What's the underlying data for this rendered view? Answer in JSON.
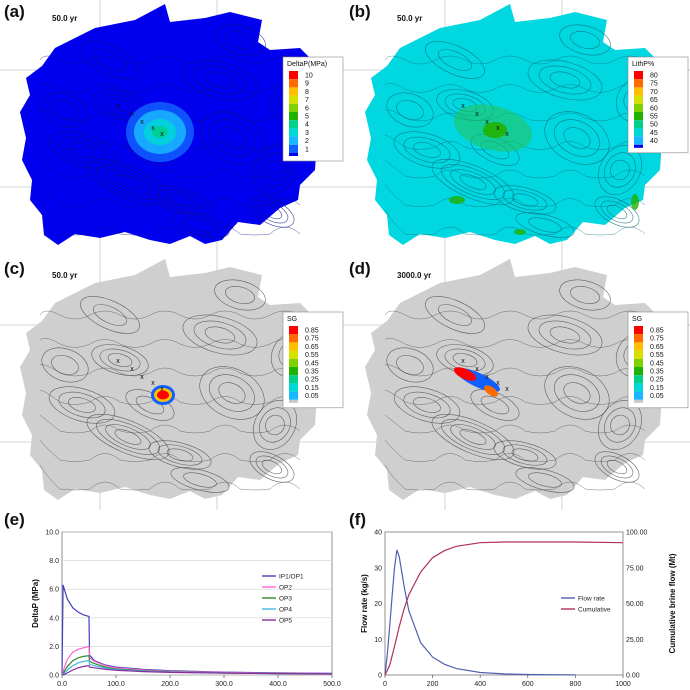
{
  "chart_data": [
    {
      "panel": "(a)",
      "type": "heatmap",
      "time_label": "50.0 yr",
      "legend_title": "DeltaP(MPa)",
      "legend_ticks": [
        "10",
        "9",
        "8",
        "7",
        "6",
        "5",
        "4",
        "3",
        "2",
        "1"
      ],
      "colors": [
        "#ff0000",
        "#ff6a00",
        "#ffbf00",
        "#d8e000",
        "#7fd200",
        "#21b100",
        "#00d08a",
        "#00d7d7",
        "#19b7ff",
        "#1060ff",
        "#0000ee"
      ]
    },
    {
      "panel": "(b)",
      "type": "heatmap",
      "time_label": "50.0 yr",
      "legend_title": "LithP%",
      "legend_ticks": [
        "80",
        "75",
        "70",
        "65",
        "60",
        "55",
        "50",
        "45",
        "40"
      ],
      "colors": [
        "#ff0000",
        "#ff6a00",
        "#ffbf00",
        "#d8e000",
        "#7fd200",
        "#21b100",
        "#00d08a",
        "#00d7d7",
        "#19b7ff",
        "#0000ee"
      ]
    },
    {
      "panel": "(c)",
      "type": "heatmap",
      "time_label": "50.0 yr",
      "legend_title": "SG",
      "legend_ticks": [
        "0.85",
        "0.75",
        "0.65",
        "0.55",
        "0.45",
        "0.35",
        "0.25",
        "0.15",
        "0.05"
      ],
      "colors": [
        "#ff0000",
        "#ff6a00",
        "#ffbf00",
        "#d8e000",
        "#7fd200",
        "#21b100",
        "#00d08a",
        "#00d7d7",
        "#19b7ff",
        "#1060ff",
        "#c8c8c8"
      ]
    },
    {
      "panel": "(d)",
      "type": "heatmap",
      "time_label": "3000.0 yr",
      "legend_title": "SG",
      "legend_ticks": [
        "0.85",
        "0.75",
        "0.65",
        "0.55",
        "0.45",
        "0.35",
        "0.25",
        "0.15",
        "0.05"
      ],
      "colors": [
        "#ff0000",
        "#ff6a00",
        "#ffbf00",
        "#d8e000",
        "#7fd200",
        "#21b100",
        "#00d08a",
        "#00d7d7",
        "#19b7ff",
        "#1060ff",
        "#c8c8c8"
      ]
    },
    {
      "panel": "(e)",
      "type": "line",
      "ylabel": "DeltaP (MPa)",
      "xlabel": "Years",
      "xlim": [
        0,
        500
      ],
      "ylim": [
        0,
        10
      ],
      "xticks": [
        0,
        100,
        200,
        300,
        400,
        500
      ],
      "xtick_labels": [
        "0.0",
        "100.0",
        "200.0",
        "300.0",
        "400.0",
        "500.0"
      ],
      "yticks": [
        0,
        2,
        4,
        6,
        8,
        10
      ],
      "ytick_labels": [
        "0.0",
        "2.0",
        "4.0",
        "6.0",
        "8.0",
        "10.0"
      ],
      "series": [
        {
          "name": "IP1/OP1",
          "color": "#4040c0",
          "x": [
            0,
            2,
            5,
            10,
            20,
            30,
            40,
            50,
            51,
            60,
            80,
            100,
            150,
            200,
            300,
            400,
            500
          ],
          "y": [
            0,
            6.3,
            5.9,
            5.3,
            4.7,
            4.4,
            4.2,
            4.1,
            1.4,
            1.0,
            0.7,
            0.55,
            0.4,
            0.3,
            0.2,
            0.15,
            0.12
          ]
        },
        {
          "name": "OP2",
          "color": "#ff66cc",
          "x": [
            0,
            5,
            10,
            20,
            30,
            40,
            50,
            51,
            60,
            80,
            100,
            150,
            200,
            300,
            400,
            500
          ],
          "y": [
            0,
            0.6,
            1.1,
            1.6,
            1.8,
            1.9,
            2.0,
            1.2,
            0.95,
            0.65,
            0.5,
            0.35,
            0.25,
            0.18,
            0.13,
            0.1
          ]
        },
        {
          "name": "OP3",
          "color": "#2e8b2e",
          "x": [
            0,
            5,
            10,
            20,
            30,
            40,
            50,
            51,
            60,
            80,
            100,
            150,
            200,
            300,
            400,
            500
          ],
          "y": [
            0,
            0.3,
            0.6,
            1.0,
            1.2,
            1.3,
            1.35,
            0.95,
            0.8,
            0.55,
            0.42,
            0.3,
            0.22,
            0.15,
            0.11,
            0.09
          ]
        },
        {
          "name": "OP4",
          "color": "#40b8e0",
          "x": [
            0,
            5,
            10,
            20,
            30,
            40,
            50,
            51,
            60,
            80,
            100,
            150,
            200,
            300,
            400,
            500
          ],
          "y": [
            0,
            0.15,
            0.35,
            0.65,
            0.85,
            0.95,
            1.0,
            0.75,
            0.65,
            0.48,
            0.38,
            0.27,
            0.2,
            0.14,
            0.1,
            0.08
          ]
        },
        {
          "name": "OP5",
          "color": "#8a2ba0",
          "x": [
            0,
            5,
            10,
            20,
            30,
            40,
            50,
            51,
            60,
            80,
            100,
            150,
            200,
            300,
            400,
            500
          ],
          "y": [
            0,
            0.05,
            0.15,
            0.35,
            0.5,
            0.6,
            0.65,
            0.55,
            0.5,
            0.4,
            0.33,
            0.24,
            0.18,
            0.13,
            0.1,
            0.08
          ]
        }
      ]
    },
    {
      "panel": "(f)",
      "type": "line",
      "ylabel": "Flow rate (kg/s)",
      "y2label": "Cumulative brine flow (Mt)",
      "xlabel": "Years",
      "xlim": [
        0,
        1000
      ],
      "ylim": [
        0,
        40
      ],
      "y2lim": [
        0,
        100
      ],
      "xticks": [
        0,
        200,
        400,
        600,
        800,
        1000
      ],
      "xtick_labels": [
        "0",
        "200",
        "400",
        "600",
        "800",
        "1000"
      ],
      "yticks": [
        0,
        10,
        20,
        30,
        40
      ],
      "ytick_labels": [
        "0",
        "10",
        "20",
        "30",
        "40"
      ],
      "y2ticks": [
        0,
        25,
        50,
        75,
        100
      ],
      "y2tick_labels": [
        "0.00",
        "25.00",
        "50.00",
        "75.00",
        "100.00"
      ],
      "series": [
        {
          "name": "Flow rate",
          "color": "#5060b0",
          "axis": "left",
          "x": [
            0,
            10,
            20,
            30,
            40,
            50,
            60,
            80,
            100,
            150,
            200,
            250,
            300,
            400,
            500,
            600,
            700,
            800
          ],
          "y": [
            0,
            6,
            14,
            22,
            30,
            35,
            33,
            25,
            18,
            9,
            5,
            3,
            1.8,
            0.7,
            0.3,
            0.15,
            0.08,
            0.05
          ]
        },
        {
          "name": "Cumulative",
          "color": "#b0305a",
          "axis": "right",
          "x": [
            0,
            20,
            40,
            60,
            80,
            100,
            150,
            200,
            250,
            300,
            400,
            500,
            600,
            800,
            1000
          ],
          "y": [
            0,
            7,
            20,
            34,
            46,
            56,
            72,
            82,
            87,
            90,
            92.5,
            93,
            93,
            93,
            92.5
          ]
        }
      ]
    }
  ]
}
